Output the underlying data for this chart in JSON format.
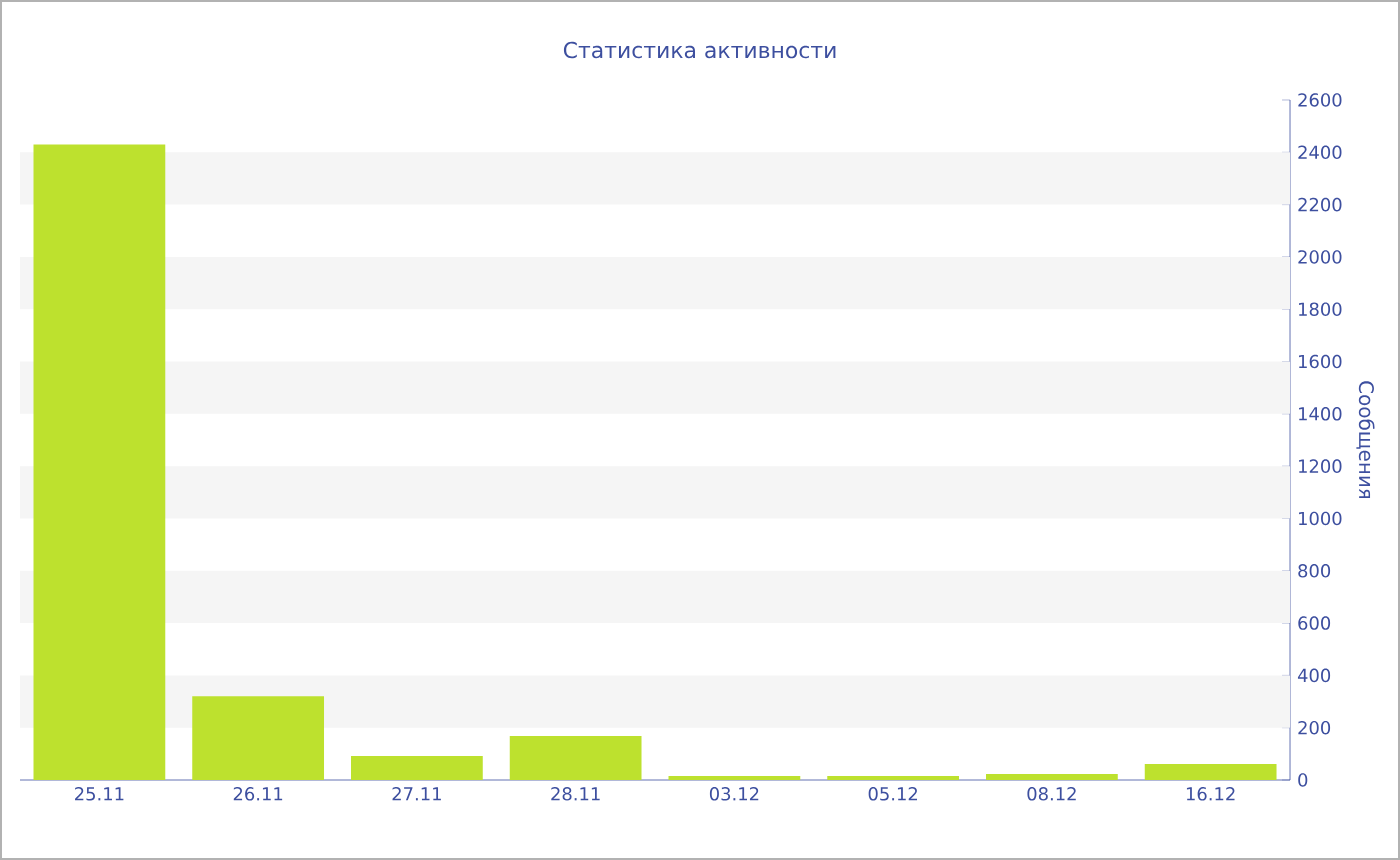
{
  "chart_data": {
    "type": "bar",
    "title": "Статистика активности",
    "ylabel": "Сообщения",
    "categories": [
      "25.11",
      "26.11",
      "27.11",
      "28.11",
      "03.12",
      "05.12",
      "08.12",
      "16.12"
    ],
    "values": [
      2430,
      320,
      92,
      168,
      15,
      15,
      23,
      61
    ],
    "color": "#bde12e",
    "ylim": [
      0,
      2600
    ],
    "yticks": [
      0,
      200,
      400,
      600,
      800,
      1000,
      1200,
      1400,
      1600,
      1800,
      2000,
      2200,
      2400,
      2600
    ],
    "bands": [
      {
        "axis": "y",
        "from": 200,
        "to": 400,
        "color": "#f5f5f5"
      },
      {
        "axis": "y",
        "from": 600,
        "to": 800,
        "color": "#f5f5f5"
      },
      {
        "axis": "y",
        "from": 1000,
        "to": 1200,
        "color": "#f5f5f5"
      },
      {
        "axis": "y",
        "from": 1400,
        "to": 1600,
        "color": "#f5f5f5"
      },
      {
        "axis": "y",
        "from": 1800,
        "to": 2000,
        "color": "#f5f5f5"
      },
      {
        "axis": "y",
        "from": 2200,
        "to": 2400,
        "color": "#f5f5f5"
      }
    ]
  }
}
